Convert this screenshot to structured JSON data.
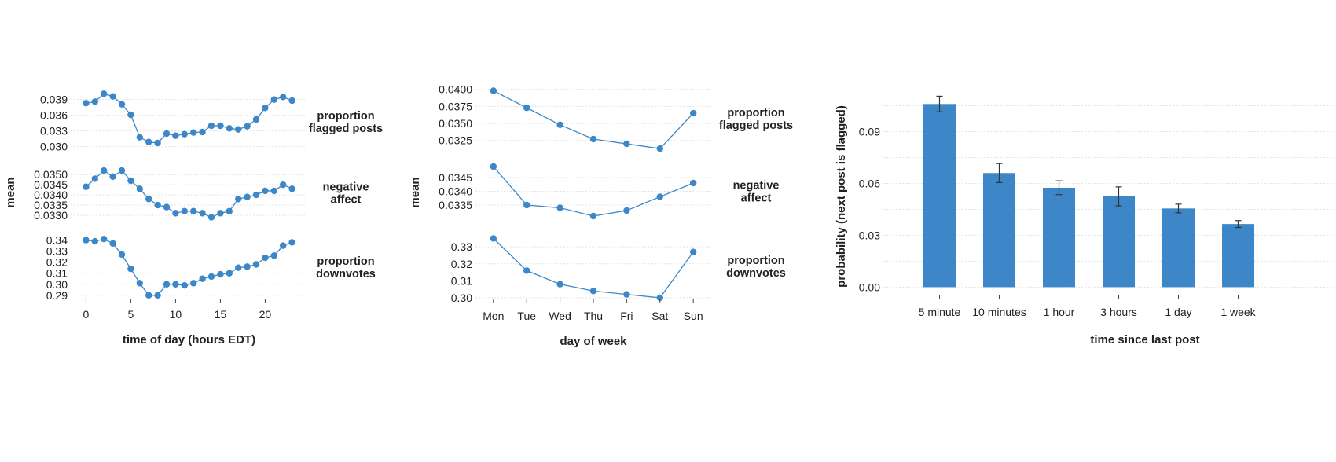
{
  "chart_data": [
    {
      "type": "line",
      "xlabel": "time of day (hours EDT)",
      "ylabel": "mean",
      "xticks": [
        0,
        5,
        10,
        15,
        20
      ],
      "xlim": [
        -1,
        24
      ],
      "color": "#3d87c8",
      "grid": true,
      "x": [
        0,
        1,
        2,
        3,
        4,
        5,
        6,
        7,
        8,
        9,
        10,
        11,
        12,
        13,
        14,
        15,
        16,
        17,
        18,
        19,
        20,
        21,
        22,
        23
      ],
      "panels": [
        {
          "facet_label": [
            "proportion",
            "flagged posts"
          ],
          "ylim": [
            0.0292,
            0.0403
          ],
          "yticks": [
            0.03,
            0.033,
            0.036,
            0.039
          ],
          "ytick_labels": [
            "0.030",
            "0.033",
            "0.036",
            "0.039"
          ],
          "values": [
            0.0383,
            0.0386,
            0.0401,
            0.0396,
            0.0381,
            0.0361,
            0.0318,
            0.0309,
            0.0307,
            0.0325,
            0.0321,
            0.0324,
            0.0327,
            0.0328,
            0.034,
            0.034,
            0.0335,
            0.0333,
            0.0339,
            0.0352,
            0.0374,
            0.039,
            0.0395,
            0.0388
          ]
        },
        {
          "facet_label": [
            "negative",
            "affect"
          ],
          "ylim": [
            0.03265,
            0.03555
          ],
          "yticks": [
            0.033,
            0.0335,
            0.034,
            0.0345,
            0.035
          ],
          "ytick_labels": [
            "0.0330",
            "0.0335",
            "0.0340",
            "0.0345",
            "0.0350"
          ],
          "values": [
            0.0344,
            0.0348,
            0.0352,
            0.0349,
            0.0352,
            0.0347,
            0.0343,
            0.0338,
            0.0335,
            0.0334,
            0.0331,
            0.0332,
            0.0332,
            0.0331,
            0.0329,
            0.0331,
            0.0332,
            0.0338,
            0.0339,
            0.034,
            0.0342,
            0.0342,
            0.0345,
            0.0343
          ]
        },
        {
          "facet_label": [
            "proportion",
            "downvotes"
          ],
          "ylim": [
            0.287,
            0.344
          ],
          "yticks": [
            0.29,
            0.3,
            0.31,
            0.32,
            0.33,
            0.34
          ],
          "ytick_labels": [
            "0.29",
            "0.30",
            "0.31",
            "0.32",
            "0.33",
            "0.34"
          ],
          "values": [
            0.34,
            0.339,
            0.341,
            0.337,
            0.327,
            0.314,
            0.301,
            0.29,
            0.29,
            0.3,
            0.3,
            0.299,
            0.301,
            0.305,
            0.307,
            0.309,
            0.31,
            0.315,
            0.316,
            0.318,
            0.324,
            0.326,
            0.335,
            0.338
          ]
        }
      ]
    },
    {
      "type": "line",
      "xlabel": "day of week",
      "ylabel": "mean",
      "categories": [
        "Mon",
        "Tue",
        "Wed",
        "Thu",
        "Fri",
        "Sat",
        "Sun"
      ],
      "color": "#3d87c8",
      "grid": true,
      "panels": [
        {
          "facet_label": [
            "proportion",
            "flagged posts"
          ],
          "ylim": [
            0.0312,
            0.0402
          ],
          "yticks": [
            0.0325,
            0.035,
            0.0375,
            0.04
          ],
          "ytick_labels": [
            "0.0325",
            "0.0350",
            "0.0375",
            "0.0400"
          ],
          "values": [
            0.0398,
            0.0373,
            0.0348,
            0.0327,
            0.032,
            0.0313,
            0.0365
          ]
        },
        {
          "facet_label": [
            "negative",
            "affect"
          ],
          "ylim": [
            0.0329,
            0.0351
          ],
          "yticks": [
            0.0335,
            0.034,
            0.0345
          ],
          "ytick_labels": [
            "0.0335",
            "0.0340",
            "0.0345"
          ],
          "values": [
            0.0349,
            0.0335,
            0.0334,
            0.0331,
            0.0333,
            0.0338,
            0.0343
          ]
        },
        {
          "facet_label": [
            "proportion",
            "downvotes"
          ],
          "ylim": [
            0.2995,
            0.3375
          ],
          "yticks": [
            0.3,
            0.31,
            0.32,
            0.33
          ],
          "ytick_labels": [
            "0.30",
            "0.31",
            "0.32",
            "0.33"
          ],
          "values": [
            0.335,
            0.316,
            0.308,
            0.304,
            0.302,
            0.3,
            0.327
          ]
        }
      ]
    },
    {
      "type": "bar",
      "xlabel": "time since last post",
      "ylabel": "probability (next post is flagged)",
      "categories": [
        "5 minute",
        "10 minutes",
        "1 hour",
        "3 hours",
        "1 day",
        "1 week"
      ],
      "values": [
        0.106,
        0.066,
        0.0575,
        0.0525,
        0.0455,
        0.0365
      ],
      "error": [
        [
          0.1015,
          0.1105
        ],
        [
          0.0605,
          0.0715
        ],
        [
          0.0535,
          0.0615
        ],
        [
          0.047,
          0.058
        ],
        [
          0.043,
          0.048
        ],
        [
          0.0345,
          0.0385
        ]
      ],
      "ylim": [
        -0.003,
        0.1125
      ],
      "yticks": [
        0.0,
        0.03,
        0.06,
        0.09
      ],
      "ytick_labels": [
        "0.00",
        "0.03",
        "0.06",
        "0.09"
      ],
      "color": "#3d87c8",
      "grid": true
    }
  ]
}
